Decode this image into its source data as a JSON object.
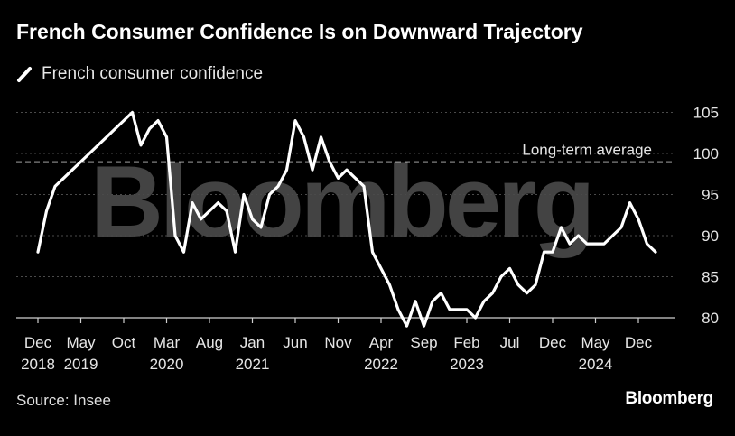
{
  "title": "French Consumer Confidence Is on Downward Trajectory",
  "legend_label": "French consumer confidence",
  "source": "Source: Insee",
  "brand": "Bloomberg",
  "watermark": "Bloomberg",
  "colors": {
    "background": "#000000",
    "line": "#ffffff",
    "grid": "#555555"
  },
  "chart_data": {
    "type": "line",
    "title": "French Consumer Confidence Is on Downward Trajectory",
    "xlabel": "",
    "ylabel": "",
    "ylim": [
      78,
      107
    ],
    "yticks": [
      80,
      85,
      90,
      95,
      100,
      105
    ],
    "x_tick_labels": [
      [
        "Dec",
        "2018"
      ],
      [
        "May",
        "2019"
      ],
      [
        "Oct",
        ""
      ],
      [
        "Mar",
        "2020"
      ],
      [
        "Aug",
        ""
      ],
      [
        "Jan",
        "2021"
      ],
      [
        "Jun",
        ""
      ],
      [
        "Nov",
        ""
      ],
      [
        "Apr",
        "2022"
      ],
      [
        "Sep",
        ""
      ],
      [
        "Feb",
        "2023"
      ],
      [
        "Jul",
        ""
      ],
      [
        "Dec",
        ""
      ],
      [
        "May",
        "2024"
      ],
      [
        "Dec",
        ""
      ]
    ],
    "reference_line": {
      "label": "Long-term average",
      "value": 99
    },
    "legend_position": "top-left",
    "grid": true,
    "series": [
      {
        "name": "French consumer confidence",
        "x": [
          "2018-12",
          "2019-01",
          "2019-02",
          "2019-03",
          "2019-04",
          "2019-05",
          "2019-06",
          "2019-07",
          "2019-08",
          "2019-09",
          "2019-10",
          "2019-11",
          "2019-12",
          "2020-01",
          "2020-02",
          "2020-03",
          "2020-04",
          "2020-05",
          "2020-06",
          "2020-07",
          "2020-08",
          "2020-09",
          "2020-10",
          "2020-11",
          "2020-12",
          "2021-01",
          "2021-02",
          "2021-03",
          "2021-04",
          "2021-05",
          "2021-06",
          "2021-07",
          "2021-08",
          "2021-09",
          "2021-10",
          "2021-11",
          "2021-12",
          "2022-01",
          "2022-02",
          "2022-03",
          "2022-04",
          "2022-05",
          "2022-06",
          "2022-07",
          "2022-08",
          "2022-09",
          "2022-10",
          "2022-11",
          "2022-12",
          "2023-01",
          "2023-02",
          "2023-03",
          "2023-04",
          "2023-05",
          "2023-06",
          "2023-07",
          "2023-08",
          "2023-09",
          "2023-10",
          "2023-11",
          "2023-12",
          "2024-01",
          "2024-02",
          "2024-03",
          "2024-04",
          "2024-05",
          "2024-06",
          "2024-07",
          "2024-08",
          "2024-09",
          "2024-10",
          "2024-11",
          "2024-12"
        ],
        "values": [
          88,
          93,
          96,
          97,
          98,
          99,
          100,
          101,
          102,
          103,
          104,
          105,
          101,
          103,
          104,
          102,
          90,
          88,
          94,
          92,
          93,
          94,
          93,
          88,
          95,
          92,
          91,
          95,
          96,
          98,
          104,
          102,
          98,
          102,
          99,
          97,
          98,
          97,
          96,
          88,
          86,
          84,
          81,
          79,
          82,
          79,
          82,
          83,
          81,
          81,
          81,
          80,
          82,
          83,
          85,
          86,
          84,
          83,
          84,
          88,
          88,
          91,
          89,
          90,
          89,
          89,
          89,
          90,
          91,
          94,
          92,
          89,
          88
        ]
      }
    ]
  }
}
